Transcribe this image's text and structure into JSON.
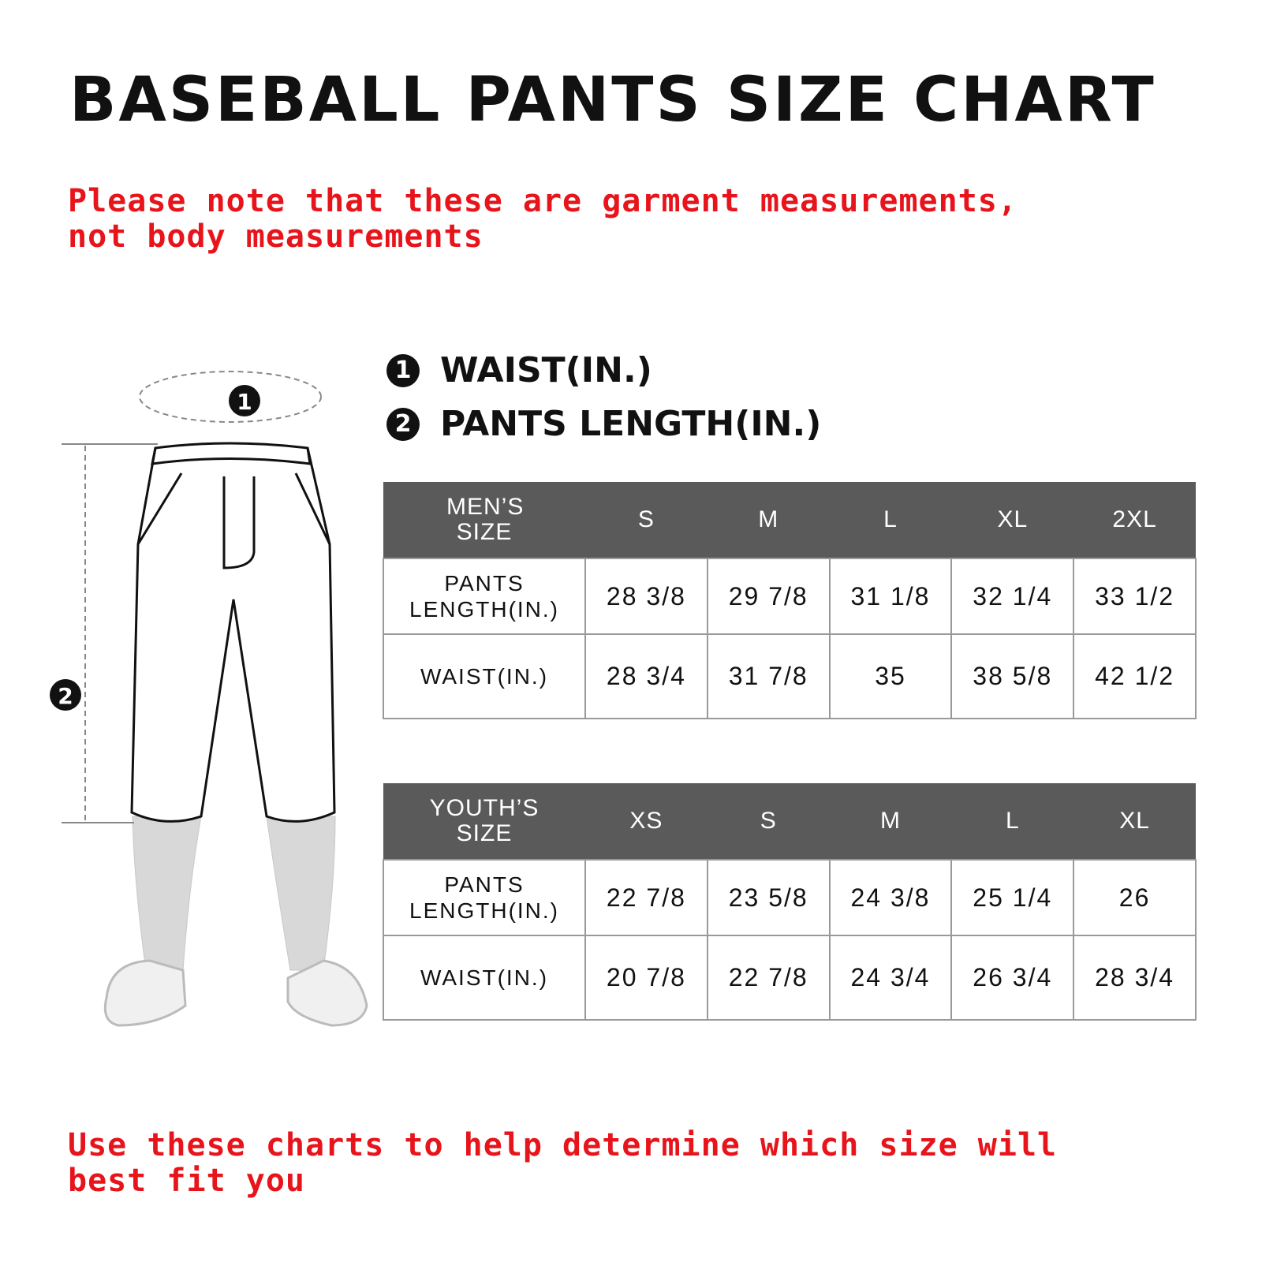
{
  "title": "BASEBALL PANTS SIZE CHART",
  "note_top": "Please note that these are garment measurements, not body measurements",
  "note_bottom": "Use these charts to help determine which size will best fit you",
  "legend": [
    {
      "num": "1",
      "label": "WAIST(IN.)"
    },
    {
      "num": "2",
      "label": "PANTS LENGTH(IN.)"
    }
  ],
  "accent_color": "#e8141b",
  "header_color": "#5a5a5a",
  "mens": {
    "header": "MEN’S SIZE",
    "sizes": [
      "S",
      "M",
      "L",
      "XL",
      "2XL"
    ],
    "rows": [
      {
        "label": "PANTS LENGTH(IN.)",
        "values": [
          "28 3/8",
          "29 7/8",
          "31 1/8",
          "32 1/4",
          "33 1/2"
        ]
      },
      {
        "label": "WAIST(IN.)",
        "values": [
          "28 3/4",
          "31 7/8",
          "35",
          "38 5/8",
          "42 1/2"
        ]
      }
    ]
  },
  "youth": {
    "header": "YOUTH’S SIZE",
    "sizes": [
      "XS",
      "S",
      "M",
      "L",
      "XL"
    ],
    "rows": [
      {
        "label": "PANTS LENGTH(IN.)",
        "values": [
          "22 7/8",
          "23 5/8",
          "24 3/8",
          "25 1/4",
          "26"
        ]
      },
      {
        "label": "WAIST(IN.)",
        "values": [
          "20 7/8",
          "22 7/8",
          "24 3/4",
          "26 3/4",
          "28 3/4"
        ]
      }
    ]
  }
}
